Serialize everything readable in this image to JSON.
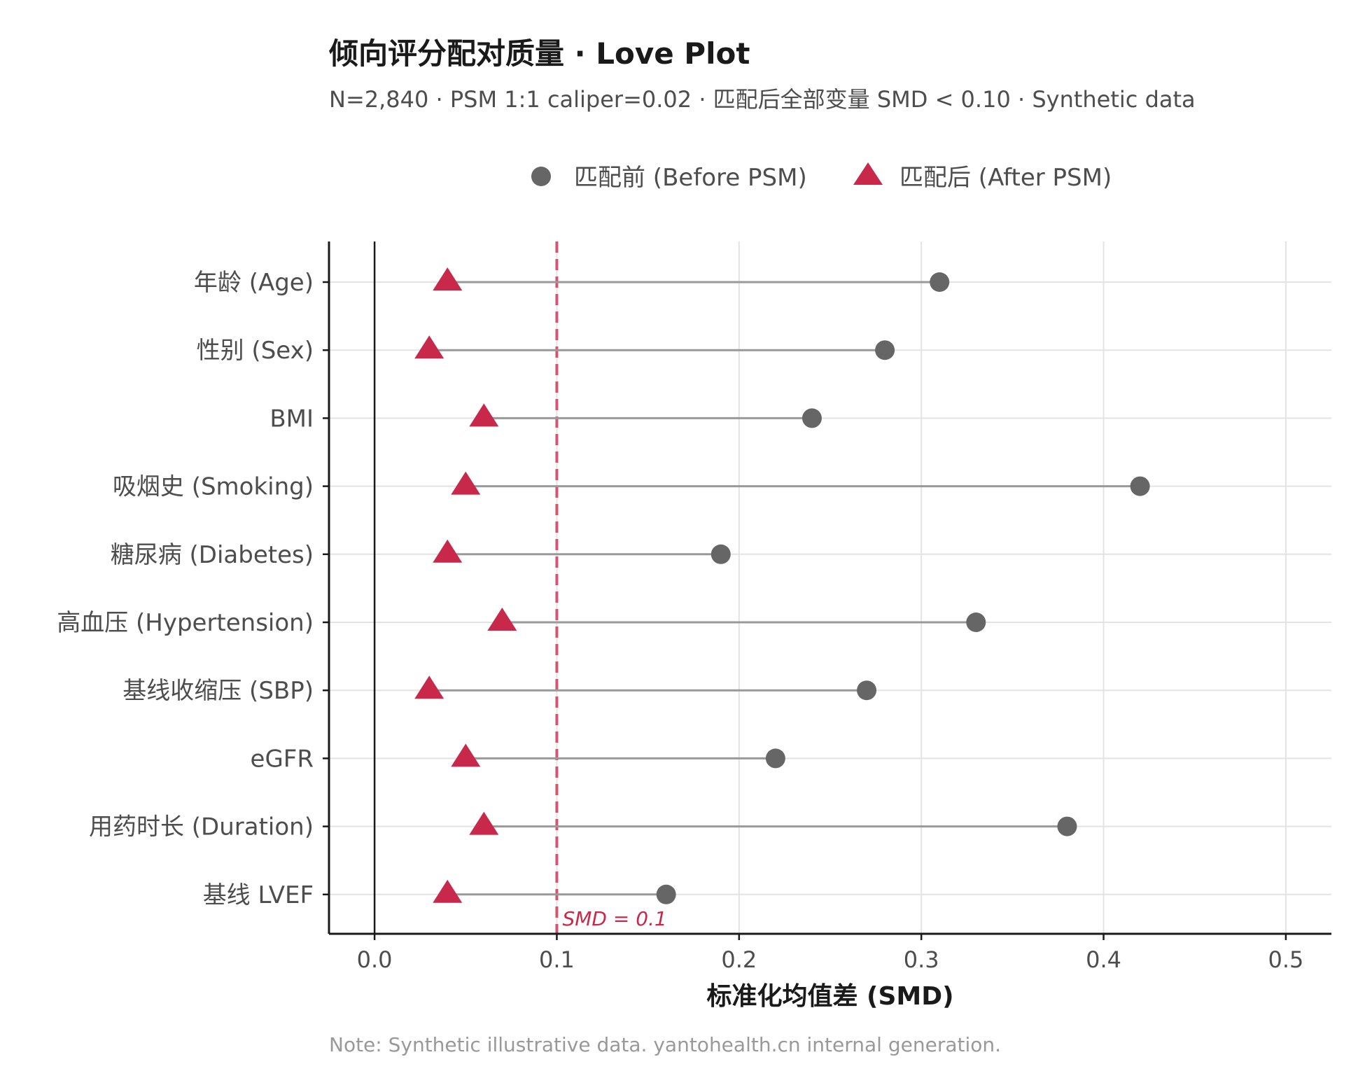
{
  "title": "倾向评分配对质量 · Love Plot",
  "subtitle": "N=2,840 · PSM 1:1 caliper=0.02 · 匹配后全部变量 SMD < 0.10 · Synthetic data",
  "note": "Note: Synthetic illustrative data. yantohealth.cn internal generation.",
  "legend": {
    "before": "匹配前 (Before PSM)",
    "after": "匹配后 (After PSM)"
  },
  "colors": {
    "before": "#666666",
    "after": "#c8284a",
    "threshold": "#d9536f",
    "connector": "#999999",
    "grid": "#e3e3e3"
  },
  "chart_data": {
    "type": "scatter",
    "title": "倾向评分配对质量 · Love Plot",
    "xlabel": "标准化均值差 (SMD)",
    "ylabel": "",
    "xlim": [
      -0.025,
      0.525
    ],
    "xticks": [
      "0.0",
      "0.1",
      "0.2",
      "0.3",
      "0.4",
      "0.5"
    ],
    "xtick_values": [
      0,
      0.1,
      0.2,
      0.3,
      0.4,
      0.5
    ],
    "grid": true,
    "legend_position": "top",
    "threshold": {
      "value": 0.1,
      "label": "SMD = 0.1"
    },
    "categories": [
      "年龄 (Age)",
      "性别 (Sex)",
      "BMI",
      "吸烟史 (Smoking)",
      "糖尿病 (Diabetes)",
      "高血压 (Hypertension)",
      "基线收缩压 (SBP)",
      "eGFR",
      "用药时长 (Duration)",
      "基线 LVEF"
    ],
    "series": [
      {
        "name": "匹配前 (Before PSM)",
        "marker": "circle",
        "values": [
          0.31,
          0.28,
          0.24,
          0.42,
          0.19,
          0.33,
          0.27,
          0.22,
          0.38,
          0.16
        ]
      },
      {
        "name": "匹配后 (After PSM)",
        "marker": "triangle",
        "values": [
          0.04,
          0.03,
          0.06,
          0.05,
          0.04,
          0.07,
          0.03,
          0.05,
          0.06,
          0.04
        ]
      }
    ]
  }
}
